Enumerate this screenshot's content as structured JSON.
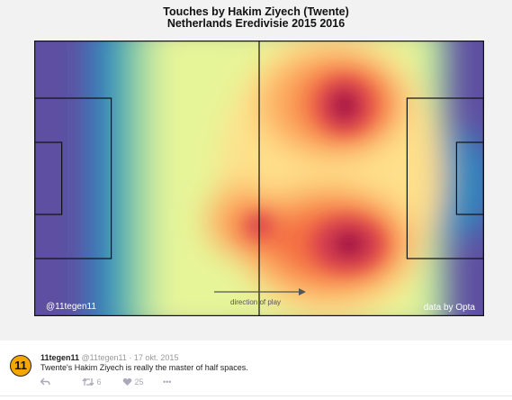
{
  "title": {
    "line1": "Touches by Hakim Ziyech (Twente)",
    "line2": "Netherlands Eredivisie 2015 2016"
  },
  "pitch": {
    "handle": "@11tegen11",
    "credit": "data by Opta",
    "direction_label": "direction of play"
  },
  "heatmap": {
    "palette": [
      "#5e4fa2",
      "#3288bd",
      "#66c2a5",
      "#abdda4",
      "#e6f598",
      "#fee08b",
      "#fdae61",
      "#f46d43",
      "#d53e4f",
      "#9e0142"
    ]
  },
  "tweet": {
    "avatar_text": "11",
    "name": "11tegen11",
    "handle": "@11tegen11",
    "date": "· 17 okt. 2015",
    "text": "Twente's Hakim Ziyech is really the master of half spaces.",
    "retweets": "6",
    "likes": "25",
    "more": "•••"
  },
  "icons": {
    "reply": "reply-icon",
    "retweet": "retweet-icon",
    "like": "heart-icon",
    "more": "more-icon"
  }
}
